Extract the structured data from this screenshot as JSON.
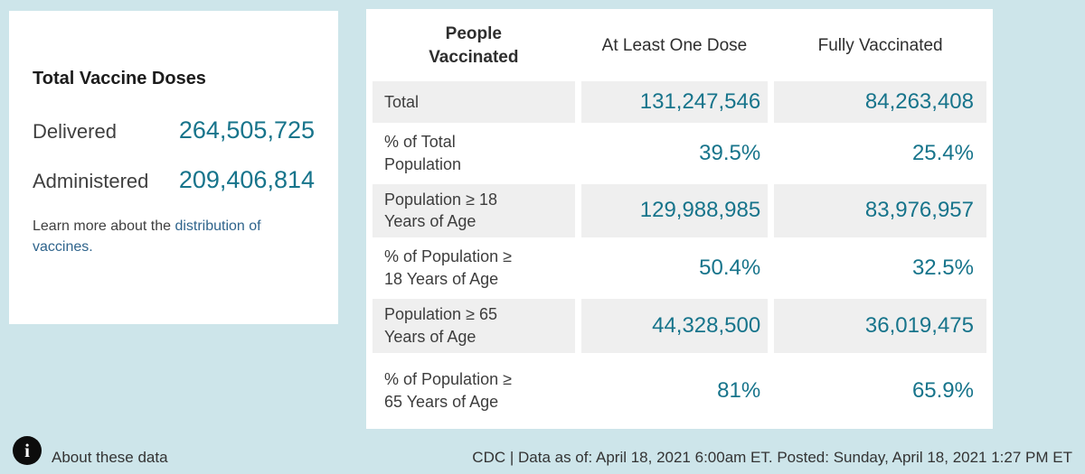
{
  "page": {
    "background_color": "#cde5ea",
    "accent_teal": "#17748b",
    "link_color": "#2f648c",
    "row_shade_color": "#efefef"
  },
  "doses_panel": {
    "title": "Total Vaccine Doses",
    "rows": [
      {
        "label": "Delivered",
        "value": "264,505,725"
      },
      {
        "label": "Administered",
        "value": "209,406,814"
      }
    ],
    "learn_more_prefix": "Learn more about the ",
    "learn_more_link": "distribution of vaccines."
  },
  "vaccination_table": {
    "columns": {
      "people": "People\nVaccinated",
      "one_dose": "At Least One Dose",
      "fully": "Fully Vaccinated"
    },
    "rows": [
      {
        "label": "Total",
        "one_dose": "131,247,546",
        "fully": "84,263,408"
      },
      {
        "label": "% of Total\nPopulation",
        "one_dose": "39.5%",
        "fully": "25.4%"
      },
      {
        "label": "Population ≥ 18\nYears of Age",
        "one_dose": "129,988,985",
        "fully": "83,976,957"
      },
      {
        "label": "% of Population ≥\n18 Years of Age",
        "one_dose": "50.4%",
        "fully": "32.5%"
      },
      {
        "label": "Population ≥ 65\nYears of Age",
        "one_dose": "44,328,500",
        "fully": "36,019,475"
      },
      {
        "label": "% of Population ≥\n65 Years of Age",
        "one_dose": "81%",
        "fully": "65.9%"
      }
    ]
  },
  "footer": {
    "info_icon_glyph": "i",
    "about_link": "About these data",
    "source_line": "CDC | Data as of: April 18, 2021 6:00am ET. Posted: Sunday, April 18, 2021 1:27 PM ET"
  }
}
